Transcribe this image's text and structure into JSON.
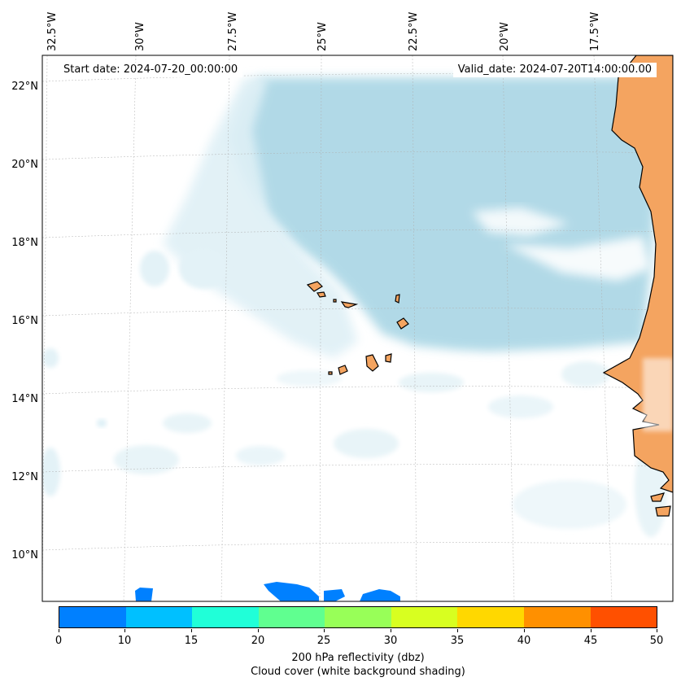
{
  "map": {
    "start_date": "Start date: 2024-07-20_00:00:00",
    "valid_date": "Valid_date: 2024-07-20T14:00:00.00",
    "lon_labels": [
      "32.5°W",
      "30°W",
      "27.5°W",
      "25°W",
      "22.5°W",
      "20°W",
      "17.5°W"
    ],
    "lat_labels": [
      "22°N",
      "20°N",
      "18°N",
      "16°N",
      "14°N",
      "12°N",
      "10°N"
    ],
    "land_color": "#f4a460",
    "cloud_color": "#add8e6",
    "coast_color": "#000000"
  },
  "colorbar": {
    "ticks": [
      "0",
      "10",
      "15",
      "20",
      "25",
      "30",
      "35",
      "40",
      "45",
      "50"
    ],
    "colors": [
      "#0080ff",
      "#00c0ff",
      "#20ffd8",
      "#60ff90",
      "#98ff58",
      "#d8ff20",
      "#ffd800",
      "#ff9000",
      "#ff5000"
    ],
    "label_line1": "200 hPa reflectivity (dbz)",
    "label_line2": "Cloud cover (white background shading)"
  }
}
